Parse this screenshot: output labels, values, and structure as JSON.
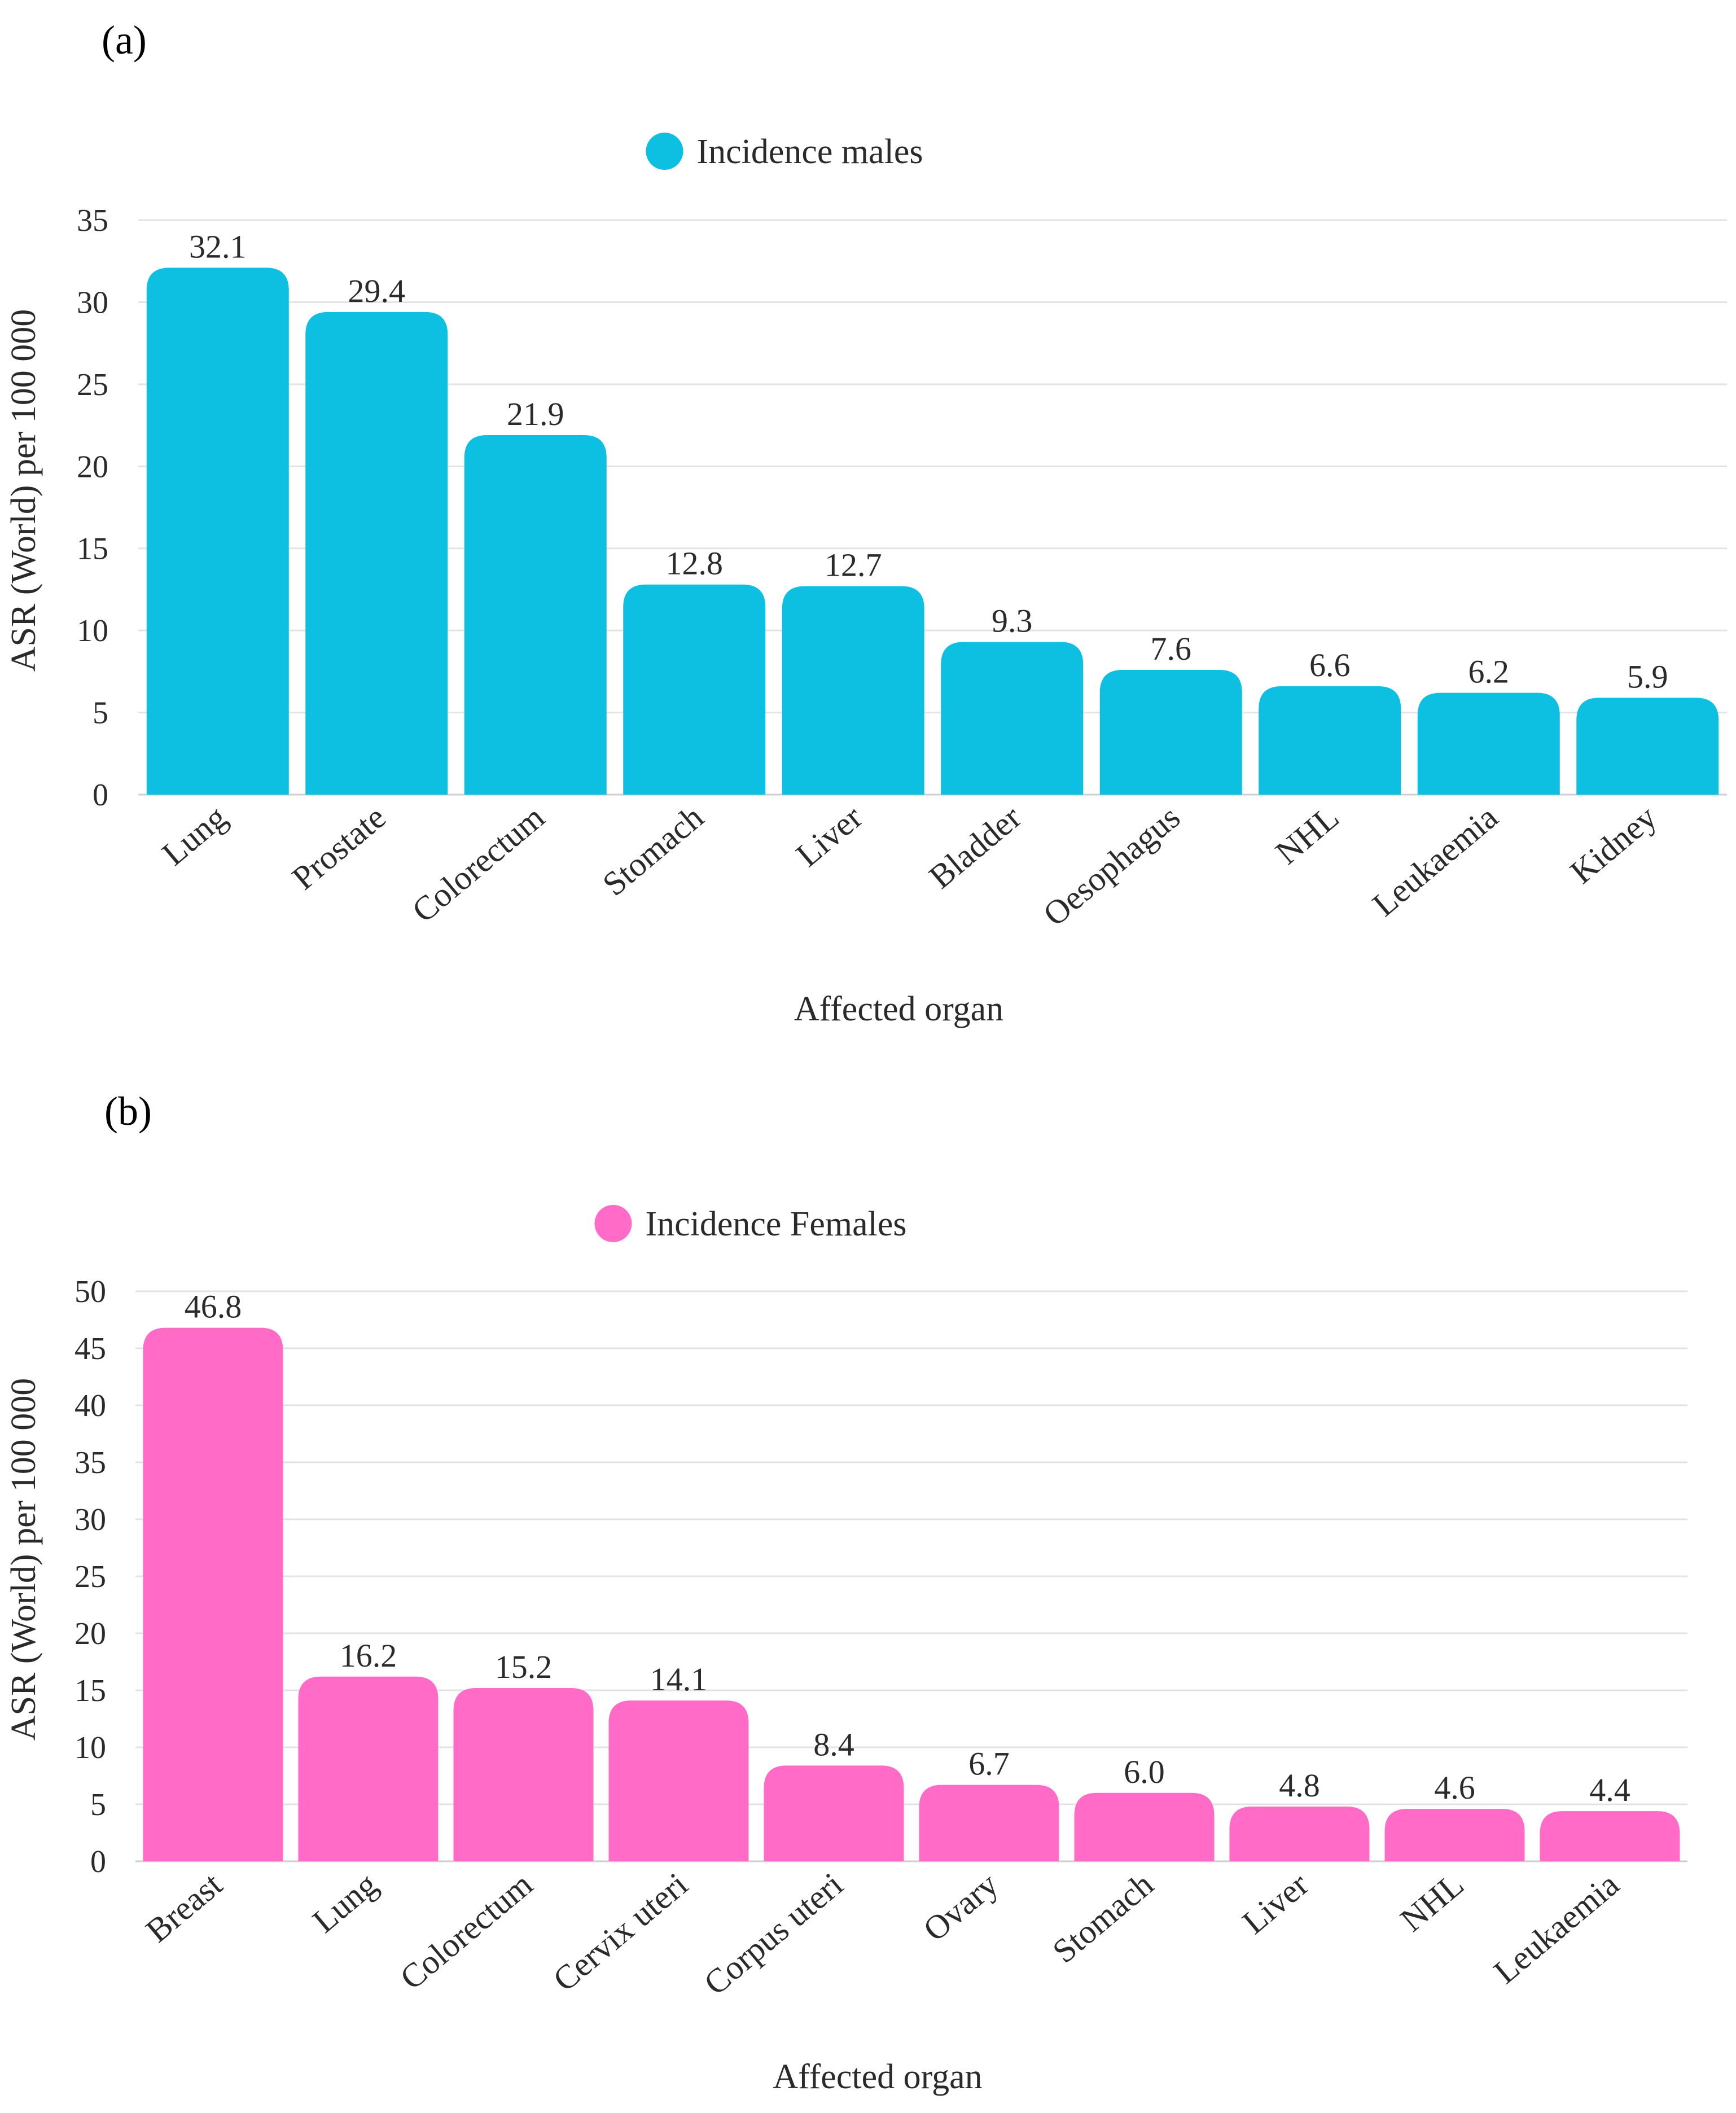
{
  "panels": {
    "a": {
      "label": "(a)"
    },
    "b": {
      "label": "(b)"
    }
  },
  "chart_data": [
    {
      "id": "a",
      "type": "bar",
      "legend": "Incidence males",
      "legend_position": "top-center",
      "color": "#0DBFE0",
      "categories": [
        "Lung",
        "Prostate",
        "Colorectum",
        "Stomach",
        "Liver",
        "Bladder",
        "Oesophagus",
        "NHL",
        "Leukaemia",
        "Kidney"
      ],
      "values": [
        32.1,
        29.4,
        21.9,
        12.8,
        12.7,
        9.3,
        7.6,
        6.6,
        6.2,
        5.9
      ],
      "value_labels": [
        "32.1",
        "29.4",
        "21.9",
        "12.8",
        "12.7",
        "9.3",
        "7.6",
        "6.6",
        "6.2",
        "5.9"
      ],
      "xlabel": "Affected organ",
      "ylabel": "ASR (World) per 100 000",
      "ylim": [
        0,
        35
      ],
      "yticks": [
        0,
        5,
        10,
        15,
        20,
        25,
        30,
        35
      ],
      "grid": true
    },
    {
      "id": "b",
      "type": "bar",
      "legend": "Incidence Females",
      "legend_position": "top-center",
      "color": "#FF6BC6",
      "categories": [
        "Breast",
        "Lung",
        "Colorectum",
        "Cervix uteri",
        "Corpus uteri",
        "Ovary",
        "Stomach",
        "Liver",
        "NHL",
        "Leukaemia"
      ],
      "values": [
        46.8,
        16.2,
        15.2,
        14.1,
        8.4,
        6.7,
        6.0,
        4.8,
        4.6,
        4.4
      ],
      "value_labels": [
        "46.8",
        "16.2",
        "15.2",
        "14.1",
        "8.4",
        "6.7",
        "6.0",
        "4.8",
        "4.6",
        "4.4"
      ],
      "xlabel": "Affected organ",
      "ylabel": "ASR (World) per 100 000",
      "ylim": [
        0,
        50
      ],
      "yticks": [
        0,
        5,
        10,
        15,
        20,
        25,
        30,
        35,
        40,
        45,
        50
      ],
      "grid": true
    }
  ]
}
